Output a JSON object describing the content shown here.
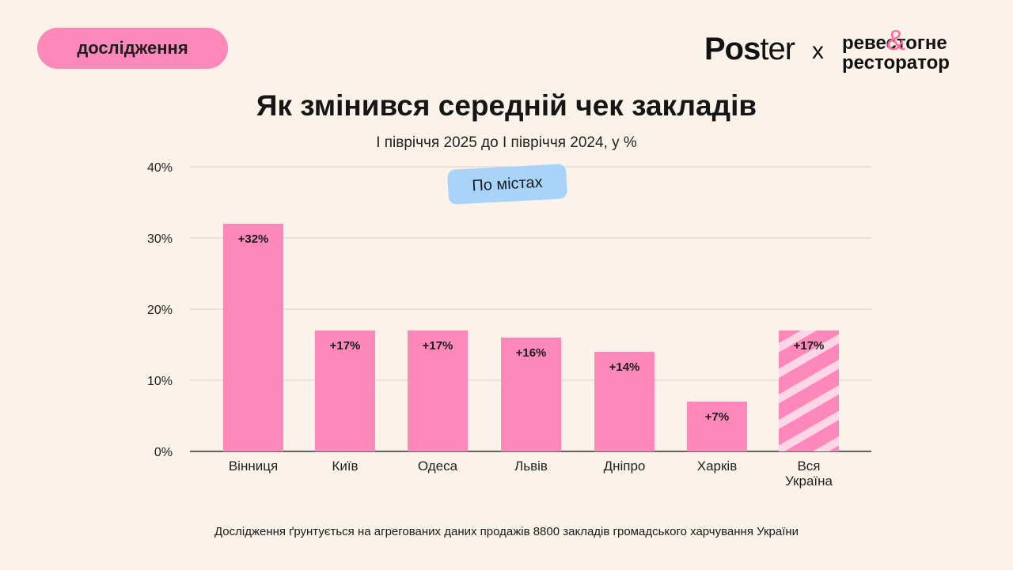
{
  "header": {
    "badge_label": "дослідження",
    "logo_poster_bold": "Pos",
    "logo_poster_light": "ter",
    "logo_separator": "x",
    "logo_partner_line1": "ревестогне",
    "logo_partner_line2": "ресторатор",
    "logo_partner_mark": "&"
  },
  "chip_label": "По містах",
  "footnote": "Дослідження ґрунтується на агрегованих даних продажів 8800 закладів громадського харчування України",
  "colors": {
    "background": "#fbf3ea",
    "bar": "#ff88bb",
    "stripe_light": "#ffd6e6",
    "chip": "#a8d4fb"
  },
  "chart_data": {
    "type": "bar",
    "title": "Як змінився середній чек закладів",
    "subtitle": "І півріччя 2025 до І півріччя 2024, у %",
    "categories": [
      "Вінниця",
      "Київ",
      "Одеса",
      "Львів",
      "Дніпро",
      "Харків",
      "Вся Україна"
    ],
    "values": [
      32,
      17,
      17,
      16,
      14,
      7,
      17
    ],
    "value_labels": [
      "+32%",
      "+17%",
      "+17%",
      "+16%",
      "+14%",
      "+7%",
      "+17%"
    ],
    "highlighted": [
      false,
      false,
      false,
      false,
      false,
      false,
      true
    ],
    "ylim": [
      0,
      40
    ],
    "yticks": [
      0,
      10,
      20,
      30,
      40
    ],
    "ytick_labels": [
      "0%",
      "10%",
      "20%",
      "30%",
      "40%"
    ],
    "grid": true,
    "xlabel": "",
    "ylabel": ""
  }
}
